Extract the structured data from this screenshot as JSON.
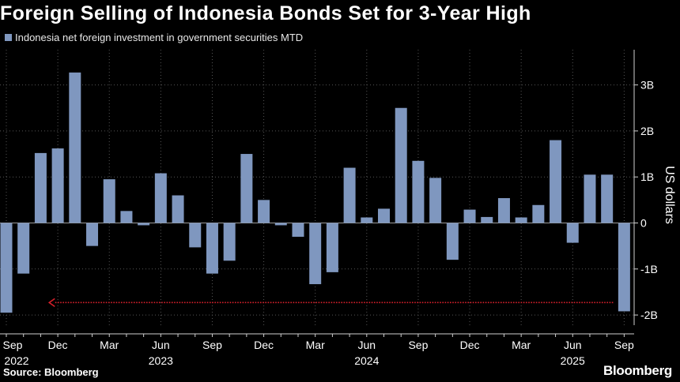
{
  "title": "Foreign Selling of Indonesia Bonds Set for 3-Year High",
  "source": "Source: Bloomberg",
  "brand": "Bloomberg",
  "colors": {
    "bar": "#7f97bf",
    "background": "#000000",
    "grid": "#555555",
    "arrow": "#d6202b",
    "text": "#ffffff"
  },
  "chart_data": {
    "type": "bar",
    "title": "Foreign Selling of Indonesia Bonds Set for 3-Year High",
    "ylabel": "US dollars",
    "ylim": [
      -2.25,
      3.75
    ],
    "yticks": [
      {
        "value": 3,
        "label": "3B"
      },
      {
        "value": 2,
        "label": "2B"
      },
      {
        "value": 1,
        "label": "1B"
      },
      {
        "value": 0,
        "label": "0"
      },
      {
        "value": -1,
        "label": "-1B"
      },
      {
        "value": -2,
        "label": "-2B"
      }
    ],
    "series": [
      {
        "name": "Indonesia net foreign investment in government securities MTD",
        "color": "#7f97bf",
        "categories": [
          "2022-09",
          "2022-10",
          "2022-11",
          "2022-12",
          "2023-01",
          "2023-02",
          "2023-03",
          "2023-04",
          "2023-05",
          "2023-06",
          "2023-07",
          "2023-08",
          "2023-09",
          "2023-10",
          "2023-11",
          "2023-12",
          "2024-01",
          "2024-02",
          "2024-03",
          "2024-04",
          "2024-05",
          "2024-06",
          "2024-07",
          "2024-08",
          "2024-09",
          "2024-10",
          "2024-11",
          "2024-12",
          "2025-01",
          "2025-02",
          "2025-03",
          "2025-04",
          "2025-05",
          "2025-06",
          "2025-07",
          "2025-08",
          "2025-09"
        ],
        "values": [
          -1.95,
          -1.1,
          1.52,
          1.62,
          3.27,
          -0.5,
          0.95,
          0.26,
          -0.05,
          1.08,
          0.6,
          -0.53,
          -1.1,
          -0.82,
          1.5,
          0.5,
          -0.05,
          -0.3,
          -1.33,
          -1.07,
          1.2,
          0.12,
          0.31,
          2.5,
          1.35,
          0.98,
          -0.8,
          0.29,
          0.13,
          0.54,
          0.12,
          0.39,
          1.8,
          -0.43,
          1.05,
          1.05,
          -1.92
        ]
      }
    ],
    "x_tick_labels": [
      {
        "month": "Sep",
        "year": "2022",
        "index": 0
      },
      {
        "month": "Dec",
        "year": "",
        "index": 3
      },
      {
        "month": "Mar",
        "year": "",
        "index": 6
      },
      {
        "month": "Jun",
        "year": "2023",
        "index": 9
      },
      {
        "month": "Sep",
        "year": "",
        "index": 12
      },
      {
        "month": "Dec",
        "year": "",
        "index": 15
      },
      {
        "month": "Mar",
        "year": "",
        "index": 18
      },
      {
        "month": "Jun",
        "year": "2024",
        "index": 21
      },
      {
        "month": "Sep",
        "year": "",
        "index": 24
      },
      {
        "month": "Dec",
        "year": "",
        "index": 27
      },
      {
        "month": "Mar",
        "year": "",
        "index": 30
      },
      {
        "month": "Jun",
        "year": "2025",
        "index": 33
      },
      {
        "month": "Sep",
        "year": "",
        "index": 36
      }
    ],
    "reference_arrow": {
      "value": -1.73,
      "from_index": 36,
      "to_index": 2.5,
      "style": "dotted",
      "color": "#d6202b"
    },
    "grid": true,
    "legend_position": "top-left"
  }
}
